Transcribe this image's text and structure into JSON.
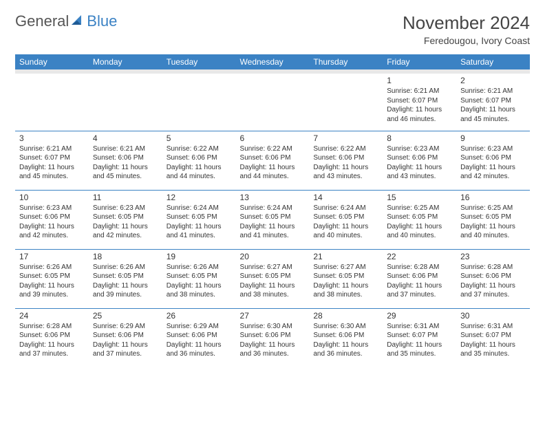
{
  "logo": {
    "text1": "General",
    "text2": "Blue"
  },
  "title": "November 2024",
  "location": "Feredougou, Ivory Coast",
  "colors": {
    "header_bg": "#3b82c4",
    "header_text": "#ffffff",
    "border": "#3b82c4",
    "subheader_bg": "#e8e8e8",
    "text": "#333333",
    "background": "#ffffff"
  },
  "weekdays": [
    "Sunday",
    "Monday",
    "Tuesday",
    "Wednesday",
    "Thursday",
    "Friday",
    "Saturday"
  ],
  "weeks": [
    [
      null,
      null,
      null,
      null,
      null,
      {
        "d": "1",
        "sr": "Sunrise: 6:21 AM",
        "ss": "Sunset: 6:07 PM",
        "dl": "Daylight: 11 hours and 46 minutes."
      },
      {
        "d": "2",
        "sr": "Sunrise: 6:21 AM",
        "ss": "Sunset: 6:07 PM",
        "dl": "Daylight: 11 hours and 45 minutes."
      }
    ],
    [
      {
        "d": "3",
        "sr": "Sunrise: 6:21 AM",
        "ss": "Sunset: 6:07 PM",
        "dl": "Daylight: 11 hours and 45 minutes."
      },
      {
        "d": "4",
        "sr": "Sunrise: 6:21 AM",
        "ss": "Sunset: 6:06 PM",
        "dl": "Daylight: 11 hours and 45 minutes."
      },
      {
        "d": "5",
        "sr": "Sunrise: 6:22 AM",
        "ss": "Sunset: 6:06 PM",
        "dl": "Daylight: 11 hours and 44 minutes."
      },
      {
        "d": "6",
        "sr": "Sunrise: 6:22 AM",
        "ss": "Sunset: 6:06 PM",
        "dl": "Daylight: 11 hours and 44 minutes."
      },
      {
        "d": "7",
        "sr": "Sunrise: 6:22 AM",
        "ss": "Sunset: 6:06 PM",
        "dl": "Daylight: 11 hours and 43 minutes."
      },
      {
        "d": "8",
        "sr": "Sunrise: 6:23 AM",
        "ss": "Sunset: 6:06 PM",
        "dl": "Daylight: 11 hours and 43 minutes."
      },
      {
        "d": "9",
        "sr": "Sunrise: 6:23 AM",
        "ss": "Sunset: 6:06 PM",
        "dl": "Daylight: 11 hours and 42 minutes."
      }
    ],
    [
      {
        "d": "10",
        "sr": "Sunrise: 6:23 AM",
        "ss": "Sunset: 6:06 PM",
        "dl": "Daylight: 11 hours and 42 minutes."
      },
      {
        "d": "11",
        "sr": "Sunrise: 6:23 AM",
        "ss": "Sunset: 6:05 PM",
        "dl": "Daylight: 11 hours and 42 minutes."
      },
      {
        "d": "12",
        "sr": "Sunrise: 6:24 AM",
        "ss": "Sunset: 6:05 PM",
        "dl": "Daylight: 11 hours and 41 minutes."
      },
      {
        "d": "13",
        "sr": "Sunrise: 6:24 AM",
        "ss": "Sunset: 6:05 PM",
        "dl": "Daylight: 11 hours and 41 minutes."
      },
      {
        "d": "14",
        "sr": "Sunrise: 6:24 AM",
        "ss": "Sunset: 6:05 PM",
        "dl": "Daylight: 11 hours and 40 minutes."
      },
      {
        "d": "15",
        "sr": "Sunrise: 6:25 AM",
        "ss": "Sunset: 6:05 PM",
        "dl": "Daylight: 11 hours and 40 minutes."
      },
      {
        "d": "16",
        "sr": "Sunrise: 6:25 AM",
        "ss": "Sunset: 6:05 PM",
        "dl": "Daylight: 11 hours and 40 minutes."
      }
    ],
    [
      {
        "d": "17",
        "sr": "Sunrise: 6:26 AM",
        "ss": "Sunset: 6:05 PM",
        "dl": "Daylight: 11 hours and 39 minutes."
      },
      {
        "d": "18",
        "sr": "Sunrise: 6:26 AM",
        "ss": "Sunset: 6:05 PM",
        "dl": "Daylight: 11 hours and 39 minutes."
      },
      {
        "d": "19",
        "sr": "Sunrise: 6:26 AM",
        "ss": "Sunset: 6:05 PM",
        "dl": "Daylight: 11 hours and 38 minutes."
      },
      {
        "d": "20",
        "sr": "Sunrise: 6:27 AM",
        "ss": "Sunset: 6:05 PM",
        "dl": "Daylight: 11 hours and 38 minutes."
      },
      {
        "d": "21",
        "sr": "Sunrise: 6:27 AM",
        "ss": "Sunset: 6:05 PM",
        "dl": "Daylight: 11 hours and 38 minutes."
      },
      {
        "d": "22",
        "sr": "Sunrise: 6:28 AM",
        "ss": "Sunset: 6:06 PM",
        "dl": "Daylight: 11 hours and 37 minutes."
      },
      {
        "d": "23",
        "sr": "Sunrise: 6:28 AM",
        "ss": "Sunset: 6:06 PM",
        "dl": "Daylight: 11 hours and 37 minutes."
      }
    ],
    [
      {
        "d": "24",
        "sr": "Sunrise: 6:28 AM",
        "ss": "Sunset: 6:06 PM",
        "dl": "Daylight: 11 hours and 37 minutes."
      },
      {
        "d": "25",
        "sr": "Sunrise: 6:29 AM",
        "ss": "Sunset: 6:06 PM",
        "dl": "Daylight: 11 hours and 37 minutes."
      },
      {
        "d": "26",
        "sr": "Sunrise: 6:29 AM",
        "ss": "Sunset: 6:06 PM",
        "dl": "Daylight: 11 hours and 36 minutes."
      },
      {
        "d": "27",
        "sr": "Sunrise: 6:30 AM",
        "ss": "Sunset: 6:06 PM",
        "dl": "Daylight: 11 hours and 36 minutes."
      },
      {
        "d": "28",
        "sr": "Sunrise: 6:30 AM",
        "ss": "Sunset: 6:06 PM",
        "dl": "Daylight: 11 hours and 36 minutes."
      },
      {
        "d": "29",
        "sr": "Sunrise: 6:31 AM",
        "ss": "Sunset: 6:07 PM",
        "dl": "Daylight: 11 hours and 35 minutes."
      },
      {
        "d": "30",
        "sr": "Sunrise: 6:31 AM",
        "ss": "Sunset: 6:07 PM",
        "dl": "Daylight: 11 hours and 35 minutes."
      }
    ]
  ]
}
